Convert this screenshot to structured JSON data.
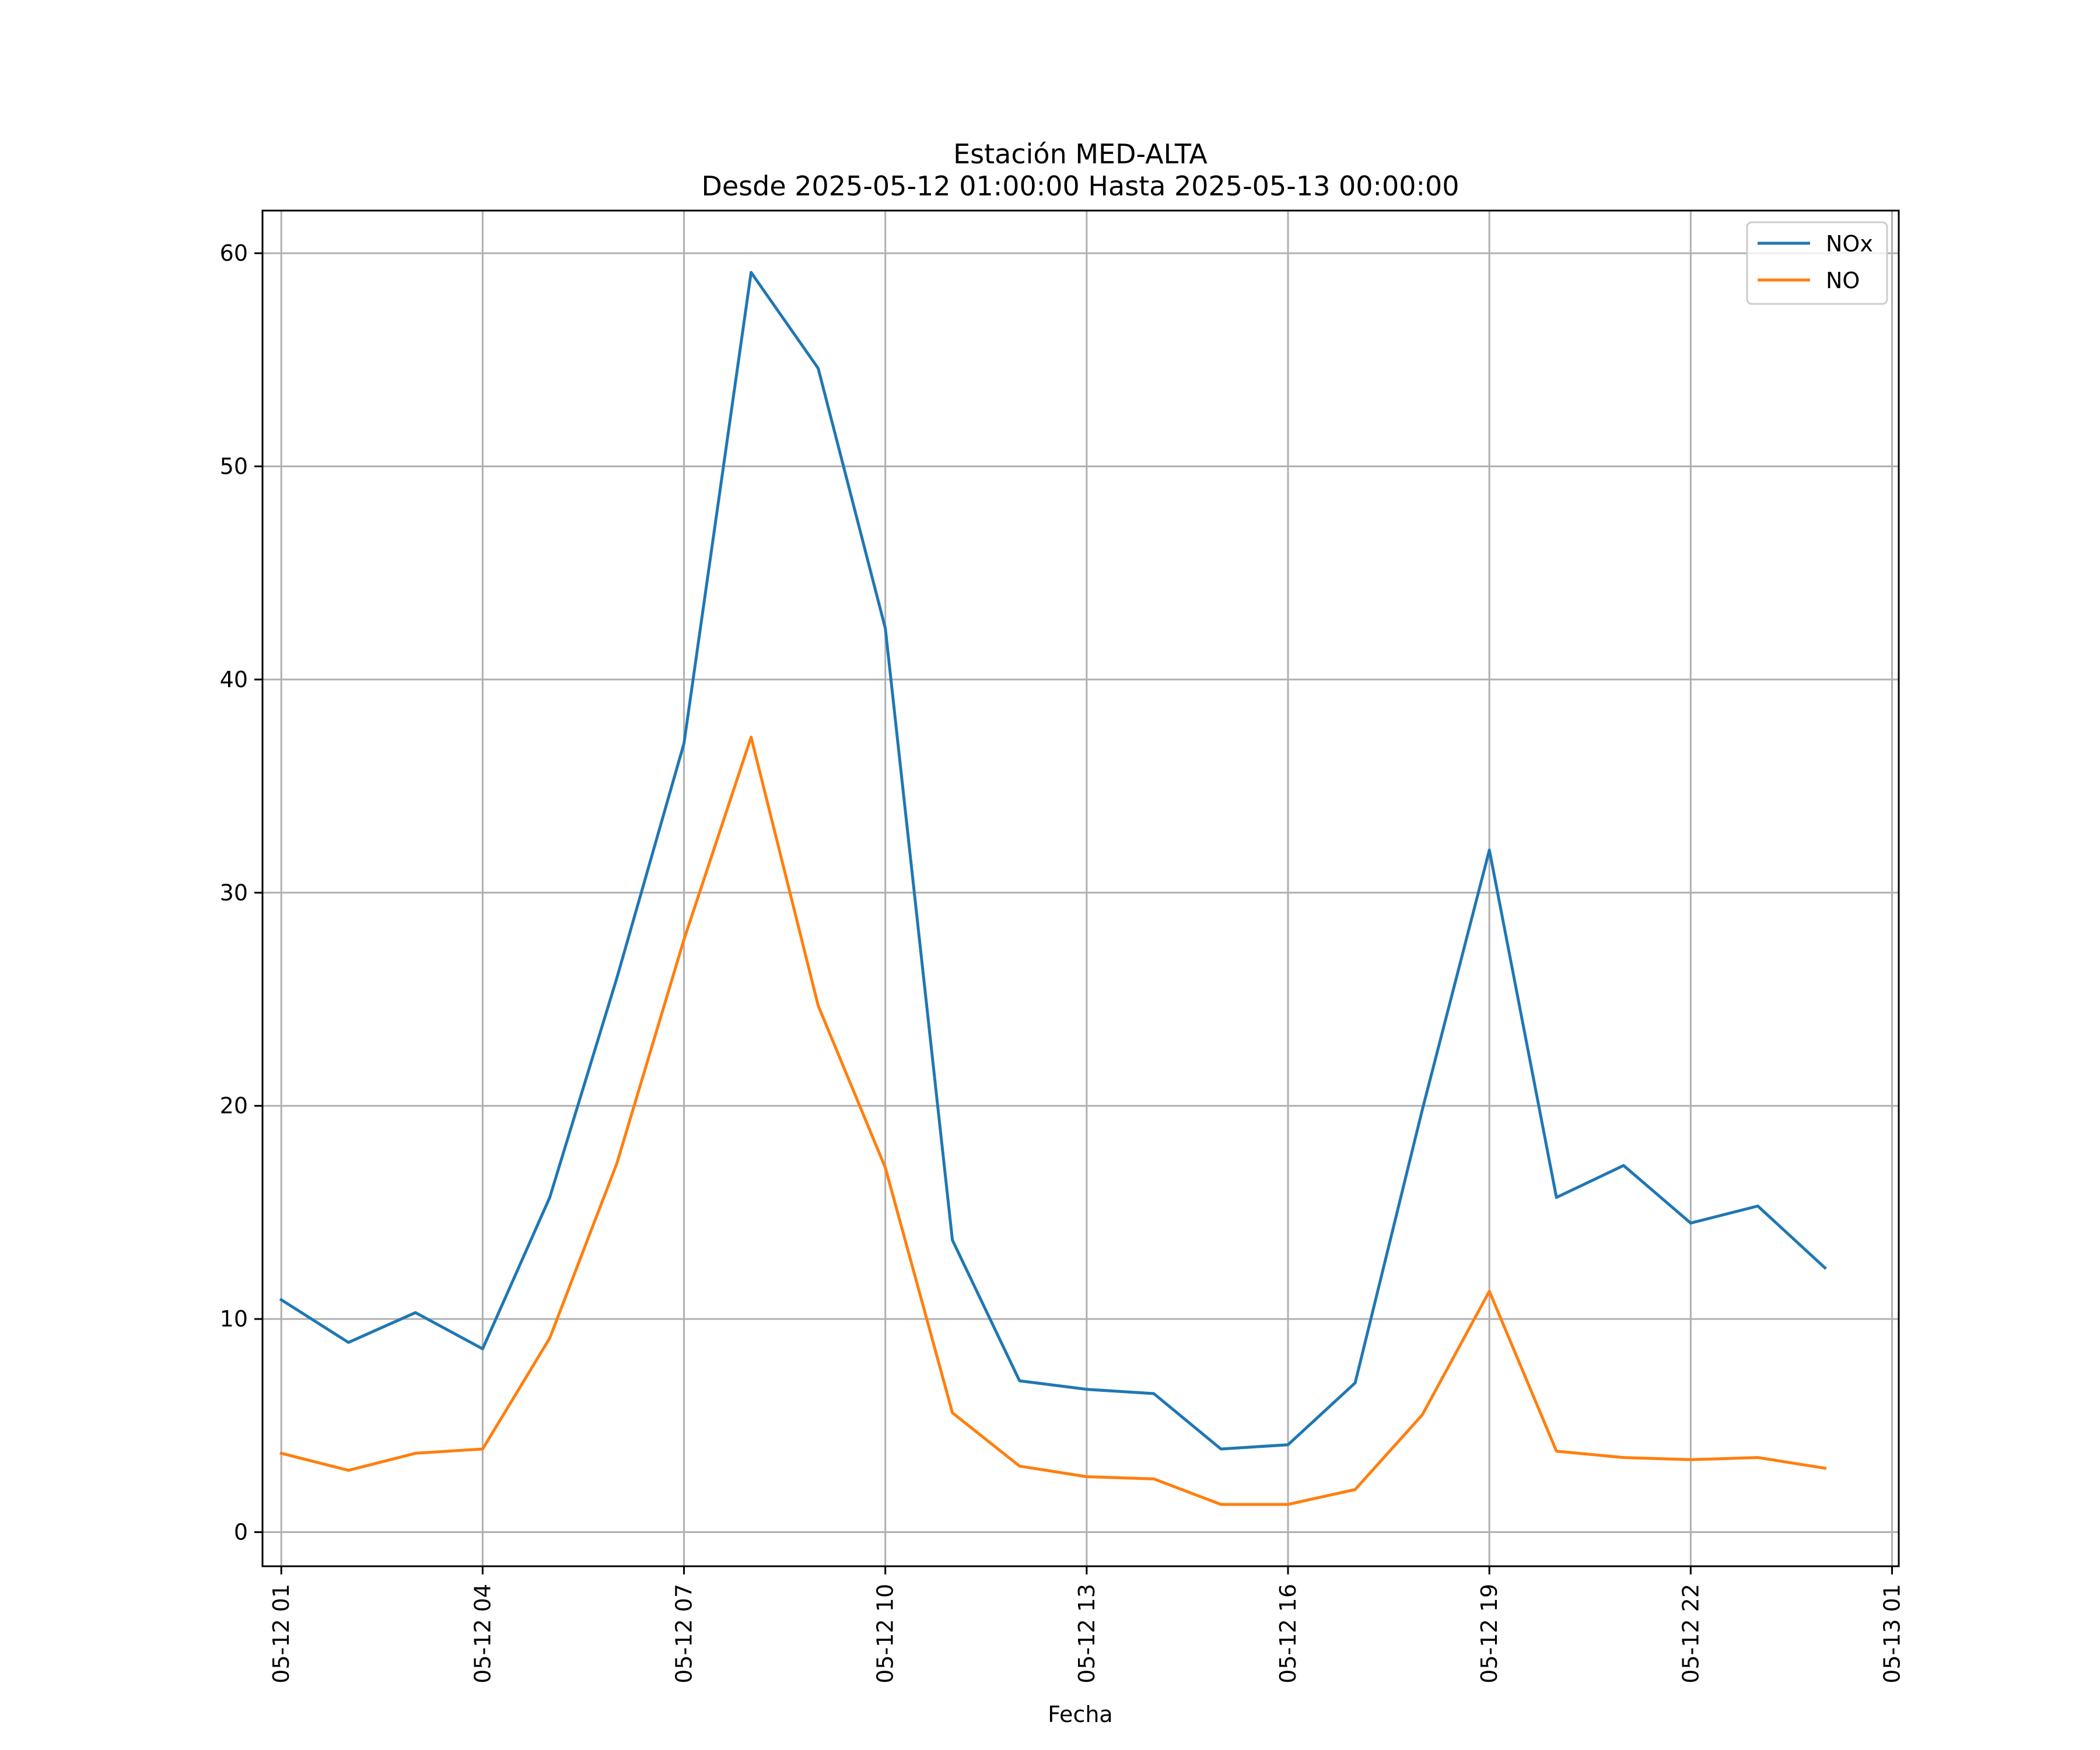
{
  "chart_data": {
    "type": "line",
    "title": "Estación MED-ALTA",
    "subtitle": "Desde 2025-05-12 01:00:00 Hasta 2025-05-13 00:00:00",
    "xlabel": "Fecha",
    "ylabel": "",
    "x": [
      "05-12 01",
      "05-12 02",
      "05-12 03",
      "05-12 04",
      "05-12 05",
      "05-12 06",
      "05-12 07",
      "05-12 08",
      "05-12 09",
      "05-12 10",
      "05-12 11",
      "05-12 12",
      "05-12 13",
      "05-12 14",
      "05-12 15",
      "05-12 16",
      "05-12 17",
      "05-12 18",
      "05-12 19",
      "05-12 20",
      "05-12 21",
      "05-12 22",
      "05-12 23",
      "05-13 00"
    ],
    "xlim": [
      -0.28,
      24.1
    ],
    "ylim": [
      -1.6,
      62
    ],
    "x_ticks": [
      {
        "pos": 0,
        "label": "05-12 01"
      },
      {
        "pos": 3,
        "label": "05-12 04"
      },
      {
        "pos": 6,
        "label": "05-12 07"
      },
      {
        "pos": 9,
        "label": "05-12 10"
      },
      {
        "pos": 12,
        "label": "05-12 13"
      },
      {
        "pos": 15,
        "label": "05-12 16"
      },
      {
        "pos": 18,
        "label": "05-12 19"
      },
      {
        "pos": 21,
        "label": "05-12 22"
      },
      {
        "pos": 24,
        "label": "05-13 01"
      }
    ],
    "y_ticks": [
      0,
      10,
      20,
      30,
      40,
      50,
      60
    ],
    "grid": true,
    "legend_position": "top-right",
    "series": [
      {
        "name": "NOx",
        "color": "#1f77b4",
        "values": [
          10.9,
          8.9,
          10.3,
          8.6,
          15.7,
          26.0,
          37.0,
          59.1,
          54.6,
          42.4,
          13.7,
          7.1,
          6.7,
          6.5,
          3.9,
          4.1,
          7.0,
          19.8,
          32.0,
          15.7,
          17.2,
          14.5,
          15.3,
          12.4
        ]
      },
      {
        "name": "NO",
        "color": "#ff7f0e",
        "values": [
          3.7,
          2.9,
          3.7,
          3.9,
          9.1,
          17.3,
          27.8,
          37.3,
          24.7,
          17.1,
          5.6,
          3.1,
          2.6,
          2.5,
          1.3,
          1.3,
          2.0,
          5.5,
          11.3,
          3.8,
          3.5,
          3.4,
          3.5,
          3.0
        ]
      }
    ]
  }
}
